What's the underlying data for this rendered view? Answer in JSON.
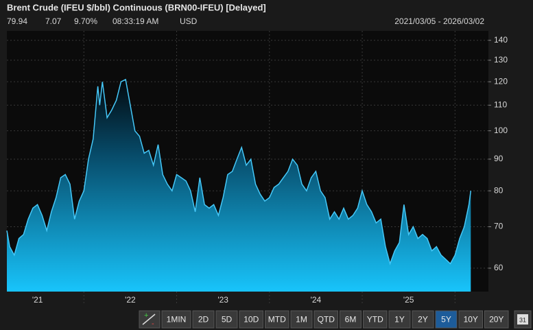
{
  "header": {
    "title": "Brent Crude (IFEU $/bbl) Continuous (BRN00-IFEU) [Delayed]",
    "last": "79.94",
    "change": "7.07",
    "pct_change": "9.70%",
    "time": "08:33:19 AM",
    "currency": "USD",
    "date_range": "2021/03/05 - 2026/03/02"
  },
  "chart_data": {
    "type": "area",
    "log_scale": true,
    "color": "#45c8f8",
    "xlim": [
      2021.17,
      2026.36
    ],
    "xticks": [
      {
        "value": 2021.5,
        "label": "'21"
      },
      {
        "value": 2022.5,
        "label": "'22"
      },
      {
        "value": 2023.5,
        "label": "'23"
      },
      {
        "value": 2024.5,
        "label": "'24"
      },
      {
        "value": 2025.5,
        "label": "'25"
      }
    ],
    "xgrid": [
      2022,
      2023,
      2024,
      2025,
      2026
    ],
    "ylim": [
      55,
      145
    ],
    "yticks": [
      60,
      70,
      80,
      90,
      100,
      110,
      120,
      130,
      140
    ],
    "grid": true,
    "series": [
      {
        "name": "Brent Crude",
        "color": "#45c8f8",
        "x": [
          2021.17,
          2021.2,
          2021.25,
          2021.3,
          2021.35,
          2021.4,
          2021.45,
          2021.5,
          2021.55,
          2021.6,
          2021.65,
          2021.7,
          2021.75,
          2021.8,
          2021.85,
          2021.9,
          2021.95,
          2022.0,
          2022.05,
          2022.1,
          2022.15,
          2022.17,
          2022.2,
          2022.25,
          2022.3,
          2022.35,
          2022.4,
          2022.45,
          2022.5,
          2022.55,
          2022.6,
          2022.65,
          2022.7,
          2022.75,
          2022.8,
          2022.85,
          2022.9,
          2022.95,
          2023.0,
          2023.05,
          2023.1,
          2023.15,
          2023.2,
          2023.25,
          2023.3,
          2023.35,
          2023.4,
          2023.45,
          2023.5,
          2023.55,
          2023.6,
          2023.65,
          2023.7,
          2023.75,
          2023.8,
          2023.85,
          2023.9,
          2023.95,
          2024.0,
          2024.05,
          2024.1,
          2024.15,
          2024.2,
          2024.25,
          2024.3,
          2024.35,
          2024.4,
          2024.45,
          2024.5,
          2024.55,
          2024.6,
          2024.65,
          2024.7,
          2024.75,
          2024.8,
          2024.85,
          2024.9,
          2024.95,
          2025.0,
          2025.05,
          2025.1,
          2025.15,
          2025.2,
          2025.25,
          2025.3,
          2025.35,
          2025.4,
          2025.45,
          2025.5,
          2025.55,
          2025.6,
          2025.65,
          2025.7,
          2025.75,
          2025.8,
          2025.85,
          2025.9,
          2025.95,
          2026.0,
          2026.05,
          2026.1,
          2026.15,
          2026.17
        ],
        "values": [
          69,
          65,
          63,
          67,
          68,
          72,
          75,
          76,
          73,
          69,
          74,
          78,
          84,
          85,
          82,
          72,
          77,
          80,
          90,
          97,
          118,
          110,
          120,
          105,
          108,
          112,
          120,
          121,
          110,
          100,
          98,
          92,
          93,
          88,
          95,
          85,
          82,
          80,
          85,
          84,
          83,
          80,
          74,
          84,
          76,
          75,
          76,
          73,
          78,
          85,
          86,
          90,
          94,
          88,
          90,
          82,
          79,
          77,
          78,
          81,
          82,
          84,
          86,
          90,
          88,
          82,
          80,
          84,
          86,
          80,
          78,
          72,
          74,
          72,
          75,
          72,
          73,
          75,
          80,
          76,
          74,
          71,
          72,
          65,
          61,
          64,
          66,
          76,
          68,
          70,
          67,
          68,
          67,
          64,
          65,
          63,
          62,
          61,
          63,
          67,
          70,
          76,
          80
        ]
      }
    ]
  },
  "toolbar": {
    "buttons": [
      "1MIN",
      "2D",
      "5D",
      "10D",
      "MTD",
      "1M",
      "QTD",
      "6M",
      "YTD",
      "1Y",
      "2Y",
      "5Y",
      "10Y",
      "20Y"
    ],
    "selected": "5Y",
    "calendar": "31"
  }
}
